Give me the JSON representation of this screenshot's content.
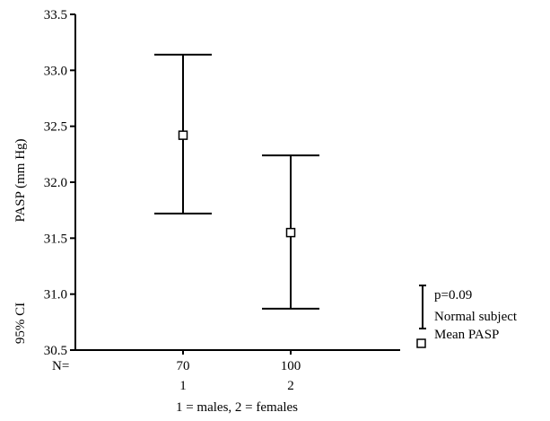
{
  "chart_data": {
    "type": "errorbar",
    "ylabel": "PASP (mm Hg)",
    "ylabel_secondary": "95% CI",
    "xlabel": "1 = males, 2 = females",
    "ylim": [
      30.5,
      33.5
    ],
    "yticks": [
      "30.5",
      "31.0",
      "31.5",
      "32.0",
      "32.5",
      "33.0",
      "33.5"
    ],
    "n_label": "N=",
    "categories": [
      "1",
      "2"
    ],
    "n_values": [
      "70",
      "100"
    ],
    "series": [
      {
        "points": [
          {
            "x": "1",
            "mean": 32.42,
            "low": 31.72,
            "high": 33.14
          },
          {
            "x": "2",
            "mean": 31.55,
            "low": 30.87,
            "high": 32.24
          }
        ]
      }
    ],
    "legend": {
      "position": "bottom-right",
      "p_value": "p=0.09",
      "bar_label": "Normal subject",
      "marker_label": "Mean PASP"
    }
  }
}
